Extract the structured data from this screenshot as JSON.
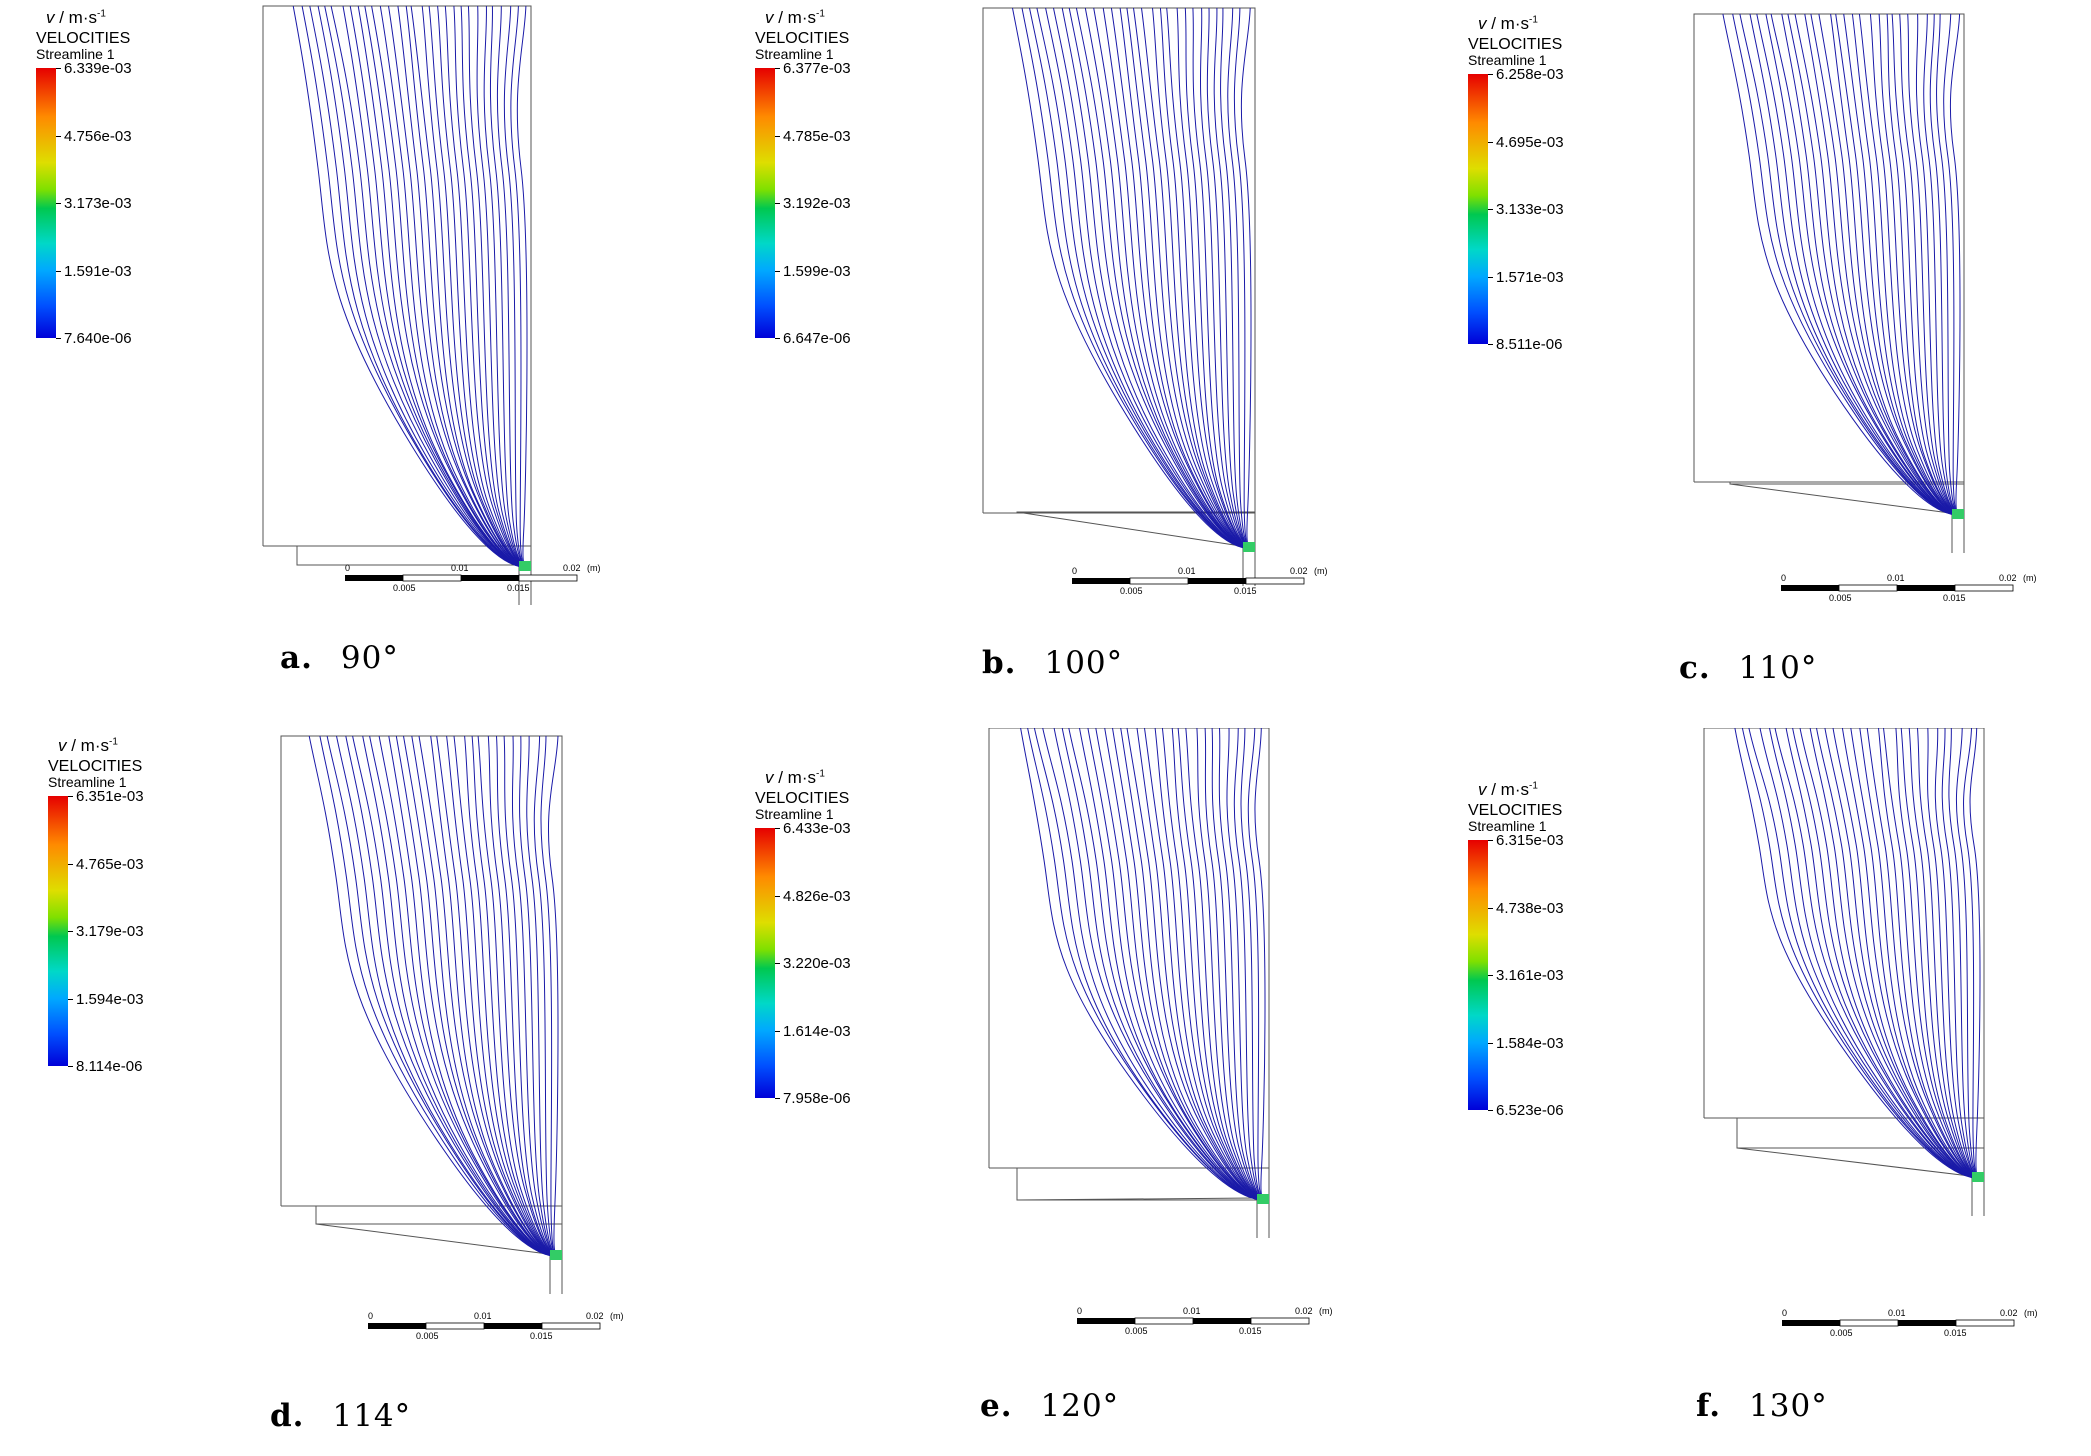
{
  "unit": {
    "symbol": "v",
    "rest": " / m·s",
    "exp": "-1"
  },
  "panels": [
    {
      "letter": "a.",
      "angle": "90°",
      "legend_title": "VELOCITIES",
      "legend_sub": "Streamline 1",
      "ticks": [
        "6.339e-03",
        "4.756e-03",
        "3.173e-03",
        "1.591e-03",
        "7.640e-06"
      ],
      "scale_labels": [
        "0",
        "0.01",
        "0.02",
        "(m)",
        "0.005",
        "0.015"
      ],
      "chamfer_deg": 90
    },
    {
      "letter": "b.",
      "angle": "100°",
      "legend_title": "VELOCITIES",
      "legend_sub": "Streamline 1",
      "ticks": [
        "6.377e-03",
        "4.785e-03",
        "3.192e-03",
        "1.599e-03",
        "6.647e-06"
      ],
      "scale_labels": [
        "0",
        "0.01",
        "0.02",
        "(m)",
        "0.005",
        "0.015"
      ],
      "chamfer_deg": 100
    },
    {
      "letter": "c.",
      "angle": "110°",
      "legend_title": "VELOCITIES",
      "legend_sub": "Streamline 1",
      "ticks": [
        "6.258e-03",
        "4.695e-03",
        "3.133e-03",
        "1.571e-03",
        "8.511e-06"
      ],
      "scale_labels": [
        "0",
        "0.01",
        "0.02",
        "(m)",
        "0.005",
        "0.015"
      ],
      "chamfer_deg": 110
    },
    {
      "letter": "d.",
      "angle": "114°",
      "legend_title": "VELOCITIES",
      "legend_sub": "Streamline 1",
      "ticks": [
        "6.351e-03",
        "4.765e-03",
        "3.179e-03",
        "1.594e-03",
        "8.114e-06"
      ],
      "scale_labels": [
        "0",
        "0.01",
        "0.02",
        "(m)",
        "0.005",
        "0.015"
      ],
      "chamfer_deg": 114
    },
    {
      "letter": "e.",
      "angle": "120°",
      "legend_title": "VELOCITIES",
      "legend_sub": "Streamline 1",
      "ticks": [
        "6.433e-03",
        "4.826e-03",
        "3.220e-03",
        "1.614e-03",
        "7.958e-06"
      ],
      "scale_labels": [
        "0",
        "0.01",
        "0.02",
        "(m)",
        "0.005",
        "0.015"
      ],
      "chamfer_deg": 120
    },
    {
      "letter": "f.",
      "angle": "130°",
      "legend_title": "VELOCITIES",
      "legend_sub": "Streamline 1",
      "ticks": [
        "6.315e-03",
        "4.738e-03",
        "3.161e-03",
        "1.584e-03",
        "6.523e-06"
      ],
      "scale_labels": [
        "0",
        "0.01",
        "0.02",
        "(m)",
        "0.005",
        "0.015"
      ],
      "chamfer_deg": 130
    }
  ],
  "colors": {
    "streamline": "#1a1aa8",
    "outline": "#555555"
  }
}
